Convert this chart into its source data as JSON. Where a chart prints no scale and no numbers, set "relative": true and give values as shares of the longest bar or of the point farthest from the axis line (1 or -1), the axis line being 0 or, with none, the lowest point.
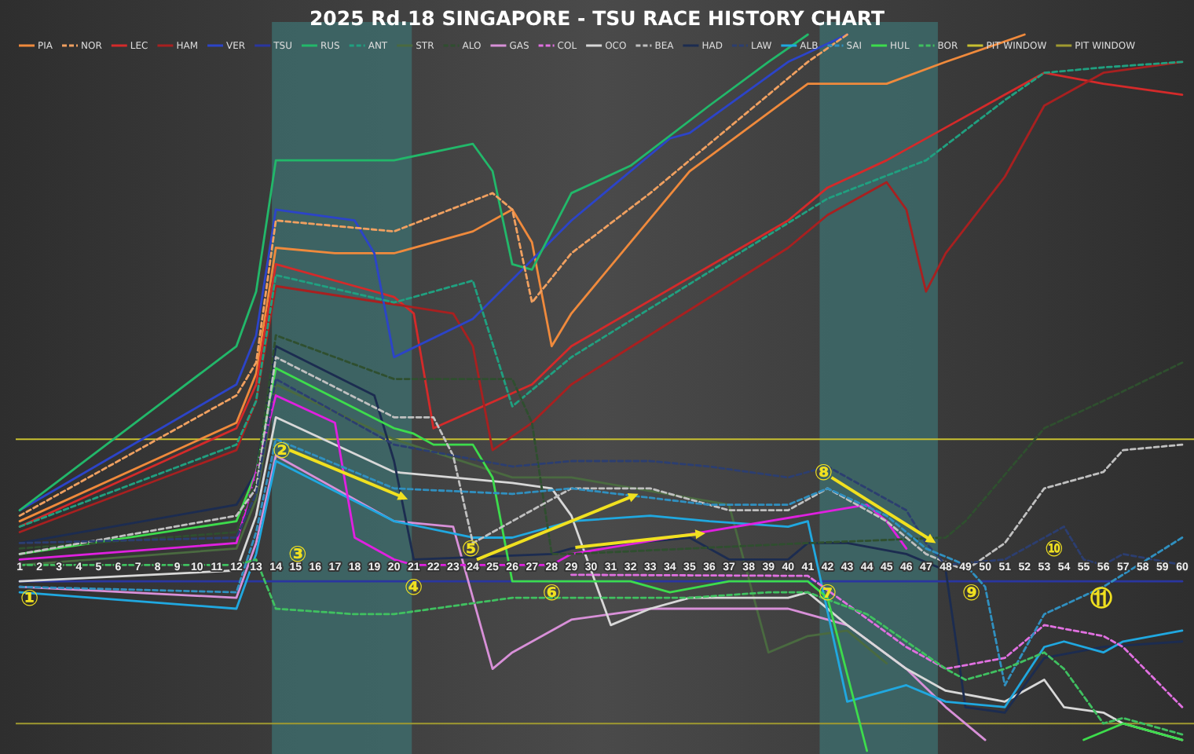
{
  "chart_data": {
    "type": "line",
    "title": "2025 Rd.18 SINGAPORE - TSU RACE HISTORY CHART",
    "relative": true,
    "legend": "top",
    "xlim": [
      0,
      60.6
    ],
    "xticks": [
      1,
      2,
      3,
      4,
      5,
      6,
      7,
      8,
      9,
      10,
      11,
      12,
      13,
      14,
      15,
      16,
      17,
      18,
      19,
      20,
      21,
      22,
      23,
      24,
      25,
      26,
      27,
      28,
      29,
      30,
      31,
      32,
      33,
      34,
      35,
      36,
      37,
      38,
      39,
      40,
      41,
      42,
      43,
      44,
      45,
      46,
      47,
      48,
      49,
      50,
      51,
      52,
      53,
      54,
      55,
      56,
      57,
      58,
      59,
      60
    ],
    "series": [
      {
        "name": "PIA",
        "color": "#f08a3c",
        "line_style": "solid",
        "x": [
          1,
          12,
          13,
          14,
          17,
          20,
          24,
          26,
          27,
          28,
          29,
          35,
          41,
          45,
          48,
          52
        ],
        "values": [
          0.11,
          0.29,
          0.38,
          0.61,
          0.6,
          0.6,
          0.64,
          0.68,
          0.62,
          0.43,
          0.49,
          0.75,
          0.91,
          0.91,
          0.95,
          1.0
        ]
      },
      {
        "name": "NOR",
        "color": "#f0a060",
        "line_style": "dashed",
        "x": [
          1,
          12,
          13,
          14,
          20,
          25,
          26,
          27,
          29,
          33,
          37,
          41,
          43
        ],
        "values": [
          0.12,
          0.34,
          0.4,
          0.66,
          0.64,
          0.71,
          0.68,
          0.51,
          0.6,
          0.71,
          0.83,
          0.95,
          1.0
        ]
      },
      {
        "name": "LEC",
        "color": "#d42a2a",
        "line_style": "solid",
        "x": [
          1,
          12,
          13,
          14,
          18,
          20,
          21,
          22,
          27,
          29,
          40,
          42,
          45,
          48,
          51,
          53,
          56,
          60
        ],
        "values": [
          0.1,
          0.28,
          0.36,
          0.58,
          0.54,
          0.52,
          0.49,
          0.28,
          0.36,
          0.43,
          0.66,
          0.72,
          0.77,
          0.83,
          0.89,
          0.93,
          0.91,
          0.89
        ]
      },
      {
        "name": "HAM",
        "color": "#a82020",
        "line_style": "solid",
        "x": [
          1,
          12,
          13,
          14,
          23,
          24,
          25,
          27,
          29,
          40,
          42,
          45,
          46,
          47,
          48,
          51,
          53,
          56,
          60
        ],
        "values": [
          0.09,
          0.24,
          0.33,
          0.54,
          0.49,
          0.43,
          0.24,
          0.29,
          0.36,
          0.61,
          0.67,
          0.73,
          0.68,
          0.53,
          0.6,
          0.74,
          0.87,
          0.93,
          0.95
        ]
      },
      {
        "name": "VER",
        "color": "#2c44c8",
        "line_style": "solid",
        "x": [
          1,
          12,
          13,
          14,
          18,
          19,
          20,
          24,
          29,
          34,
          35,
          40,
          43
        ],
        "values": [
          0.13,
          0.36,
          0.45,
          0.68,
          0.66,
          0.6,
          0.41,
          0.48,
          0.66,
          0.81,
          0.82,
          0.95,
          1.0
        ]
      },
      {
        "name": "TSU",
        "color": "#2a36a0",
        "line_style": "solid",
        "x": [
          1,
          60
        ],
        "values": [
          0,
          0
        ]
      },
      {
        "name": "RUS",
        "color": "#22b86a",
        "line_style": "solid",
        "x": [
          1,
          12,
          13,
          14,
          20,
          24,
          25,
          26,
          27,
          29,
          32,
          36,
          39,
          41
        ],
        "values": [
          0.13,
          0.43,
          0.53,
          0.77,
          0.77,
          0.8,
          0.75,
          0.58,
          0.57,
          0.71,
          0.76,
          0.87,
          0.95,
          1.0
        ]
      },
      {
        "name": "ANT",
        "color": "#20a080",
        "line_style": "dashed",
        "x": [
          1,
          12,
          13,
          14,
          20,
          24,
          26,
          29,
          42,
          47,
          51,
          53,
          56,
          60
        ],
        "values": [
          0.1,
          0.25,
          0.33,
          0.56,
          0.51,
          0.55,
          0.32,
          0.41,
          0.7,
          0.77,
          0.88,
          0.93,
          0.94,
          0.95
        ]
      },
      {
        "name": "STR",
        "color": "#4a6a40",
        "line_style": "solid",
        "x": [
          1,
          12,
          13,
          14,
          20,
          26,
          29,
          37,
          39,
          41,
          43,
          45
        ],
        "values": [
          0.03,
          0.06,
          0.15,
          0.36,
          0.26,
          0.19,
          0.19,
          0.14,
          -0.13,
          -0.1,
          -0.09,
          -0.15
        ]
      },
      {
        "name": "ALO",
        "color": "#2f4f2f",
        "line_style": "dashed",
        "x": [
          1,
          12,
          13,
          14,
          20,
          26,
          27,
          28,
          29,
          41,
          48,
          49,
          53,
          56,
          60
        ],
        "values": [
          0.06,
          0.09,
          0.19,
          0.45,
          0.37,
          0.37,
          0.29,
          0.05,
          0.05,
          0.07,
          0.08,
          0.11,
          0.28,
          0.33,
          0.4
        ]
      },
      {
        "name": "GAS",
        "color": "#d890d8",
        "line_style": "solid",
        "x": [
          1,
          12,
          13,
          14,
          20,
          23,
          25,
          26,
          29,
          33,
          35,
          40,
          43,
          46,
          48,
          50
        ],
        "values": [
          -0.01,
          -0.03,
          0.07,
          0.23,
          0.11,
          0.1,
          -0.16,
          -0.13,
          -0.07,
          -0.05,
          -0.05,
          -0.05,
          -0.08,
          -0.16,
          -0.23,
          -0.29
        ]
      },
      {
        "name": "COL",
        "color": "#e070e0",
        "line_style": "dashed",
        "x": [
          29,
          41,
          46,
          48,
          51,
          53,
          56,
          57,
          60
        ],
        "values": [
          0.012,
          0.01,
          -0.12,
          -0.16,
          -0.14,
          -0.08,
          -0.1,
          -0.12,
          -0.23
        ]
      },
      {
        "name": "OCO",
        "color": "#d8d8d8",
        "line_style": "solid",
        "x": [
          1,
          12,
          13,
          14,
          20,
          26,
          28,
          29,
          31,
          33,
          35,
          40,
          41,
          43,
          46,
          48,
          51,
          53,
          54,
          56,
          57,
          60
        ],
        "values": [
          0,
          0.02,
          0.12,
          0.3,
          0.2,
          0.18,
          0.17,
          0.12,
          -0.08,
          -0.05,
          -0.03,
          -0.03,
          -0.02,
          -0.08,
          -0.16,
          -0.2,
          -0.22,
          -0.18,
          -0.23,
          -0.24,
          -0.26,
          -0.29
        ]
      },
      {
        "name": "BEA",
        "color": "#c0c0c0",
        "line_style": "dashed",
        "x": [
          1,
          12,
          13,
          14,
          20,
          22,
          23,
          24,
          26,
          29,
          33,
          37,
          40,
          42,
          45,
          47,
          49,
          51,
          53,
          56,
          57,
          60
        ],
        "values": [
          0.05,
          0.12,
          0.17,
          0.41,
          0.3,
          0.3,
          0.23,
          0.07,
          0.11,
          0.17,
          0.17,
          0.13,
          0.13,
          0.17,
          0.11,
          0.05,
          0.02,
          0.07,
          0.17,
          0.2,
          0.24,
          0.25
        ]
      },
      {
        "name": "HAD",
        "color": "#1c2c50",
        "line_style": "solid",
        "x": [
          1,
          12,
          13,
          14,
          19,
          20,
          21,
          28,
          29,
          35,
          37,
          40,
          41,
          43,
          46,
          48,
          49,
          51,
          53,
          56,
          60
        ],
        "values": [
          0.07,
          0.14,
          0.2,
          0.43,
          0.34,
          0.22,
          0.04,
          0.05,
          0.06,
          0.08,
          0.04,
          0.04,
          0.07,
          0.07,
          0.05,
          0.02,
          -0.23,
          -0.24,
          -0.14,
          -0.12,
          -0.11
        ]
      },
      {
        "name": "LAW",
        "color": "#2c3e70",
        "line_style": "dashed",
        "x": [
          1,
          12,
          13,
          14,
          20,
          26,
          29,
          33,
          36,
          40,
          42,
          46,
          47,
          48,
          51,
          54,
          55,
          56,
          57,
          60
        ],
        "values": [
          0.07,
          0.08,
          0.16,
          0.37,
          0.25,
          0.21,
          0.22,
          0.22,
          0.21,
          0.19,
          0.21,
          0.13,
          0.07,
          0.03,
          0.04,
          0.1,
          0.04,
          0.03,
          0.05,
          0.03
        ]
      },
      {
        "name": "ALB",
        "color": "#20a8e0",
        "line_style": "solid",
        "x": [
          1,
          12,
          13,
          14,
          20,
          24,
          26,
          29,
          33,
          36,
          40,
          41,
          43,
          46,
          48,
          51,
          53,
          54,
          56,
          57,
          60
        ],
        "values": [
          -0.02,
          -0.05,
          0.05,
          0.22,
          0.11,
          0.08,
          0.08,
          0.11,
          0.12,
          0.11,
          0.1,
          0.11,
          -0.22,
          -0.19,
          -0.22,
          -0.23,
          -0.12,
          -0.11,
          -0.13,
          -0.11,
          -0.09
        ]
      },
      {
        "name": "SAI",
        "color": "#3090c0",
        "line_style": "dashed",
        "x": [
          1,
          12,
          13,
          14,
          20,
          26,
          29,
          36,
          40,
          42,
          45,
          47,
          49,
          50,
          51,
          53,
          56,
          60
        ],
        "values": [
          -0.01,
          -0.02,
          0.09,
          0.26,
          0.17,
          0.16,
          0.17,
          0.14,
          0.14,
          0.17,
          0.12,
          0.06,
          0.03,
          -0.01,
          -0.19,
          -0.06,
          -0.01,
          0.08
        ]
      },
      {
        "name": "HUL",
        "color": "#3ddc4c",
        "line_style": "solid",
        "x": [
          1,
          12,
          13,
          14,
          20,
          21,
          22,
          24,
          25,
          26,
          29,
          32,
          34,
          37,
          41,
          42,
          44,
          50,
          55,
          57,
          60
        ],
        "values": [
          0.05,
          0.11,
          0.2,
          0.39,
          0.28,
          0.27,
          0.25,
          0.25,
          0.19,
          0,
          0,
          0,
          -0.02,
          0,
          0,
          -0.03,
          -0.31,
          null,
          -0.29,
          -0.26,
          -0.29
        ]
      },
      {
        "name": "BOR",
        "color": "#40c060",
        "line_style": "dashed",
        "x": [
          1,
          12,
          13,
          14,
          18,
          20,
          26,
          29,
          35,
          39,
          41,
          44,
          46,
          48,
          49,
          51,
          53,
          54,
          56,
          57,
          60
        ],
        "values": [
          0.03,
          0.03,
          0.04,
          -0.05,
          -0.06,
          -0.06,
          -0.03,
          -0.03,
          -0.03,
          -0.02,
          -0.02,
          -0.06,
          -0.11,
          -0.16,
          -0.18,
          -0.16,
          -0.13,
          -0.16,
          -0.26,
          -0.25,
          -0.28
        ]
      },
      {
        "color": "#e020e0",
        "line_style": "solid",
        "x": [
          1,
          12,
          13,
          14,
          17,
          18,
          20,
          21,
          28,
          29,
          44,
          45,
          46
        ],
        "values": [
          0.04,
          0.07,
          0.2,
          0.34,
          0.29,
          0.08,
          0.04,
          0.03,
          0.03,
          0.05,
          0.14,
          0.11,
          0.06
        ]
      }
    ],
    "ref_lines": [
      {
        "axis": "y",
        "value": 0.26,
        "label": "PIT WINDOW",
        "color": "#c8c030"
      },
      {
        "axis": "y",
        "value": -0.26,
        "label": "PIT WINDOW",
        "color": "#a09a30"
      }
    ],
    "bands": [
      {
        "axis": "x",
        "from": 13.8,
        "to": 20.9,
        "color": "#3e7070"
      },
      {
        "axis": "x",
        "from": 41.6,
        "to": 47.6,
        "color": "#3e7070"
      }
    ],
    "annotations": [
      {
        "text": "①",
        "x": 1.5,
        "y": -0.03
      },
      {
        "text": "②",
        "x": 14.3,
        "y": 0.24
      },
      "③",
      {
        "text": "④",
        "x": 21,
        "y": -0.01
      },
      {
        "text": "⑤",
        "x": 23.9,
        "y": 0.06
      },
      {
        "text": "⑥",
        "x": 28,
        "y": -0.02
      },
      {
        "text": "⑦",
        "x": 42,
        "y": -0.02
      },
      {
        "text": "⑧",
        "x": 41.8,
        "y": 0.2
      },
      "⑨",
      "⑩",
      "⑪"
    ]
  }
}
